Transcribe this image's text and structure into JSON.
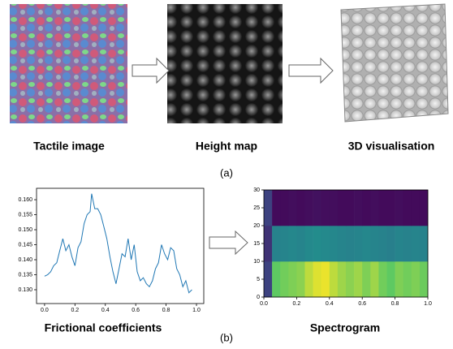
{
  "panel_a": {
    "labels": [
      "Tactile image",
      "Height map",
      "3D visualisation"
    ],
    "caption": "(a)"
  },
  "panel_b": {
    "caption": "(b)"
  },
  "chart_data": [
    {
      "type": "line",
      "caption": "Frictional coefficients",
      "color": "#1f77b4",
      "x": [
        0.0,
        0.02,
        0.04,
        0.06,
        0.08,
        0.1,
        0.12,
        0.14,
        0.16,
        0.18,
        0.2,
        0.22,
        0.24,
        0.26,
        0.28,
        0.3,
        0.31,
        0.33,
        0.35,
        0.37,
        0.39,
        0.41,
        0.43,
        0.45,
        0.47,
        0.49,
        0.51,
        0.53,
        0.55,
        0.57,
        0.59,
        0.61,
        0.63,
        0.65,
        0.67,
        0.69,
        0.71,
        0.73,
        0.75,
        0.77,
        0.79,
        0.81,
        0.83,
        0.85,
        0.87,
        0.89,
        0.91,
        0.93,
        0.95,
        0.97
      ],
      "values": [
        0.1345,
        0.135,
        0.136,
        0.138,
        0.139,
        0.143,
        0.147,
        0.143,
        0.145,
        0.141,
        0.138,
        0.144,
        0.146,
        0.152,
        0.155,
        0.156,
        0.162,
        0.157,
        0.157,
        0.155,
        0.151,
        0.147,
        0.141,
        0.136,
        0.132,
        0.137,
        0.142,
        0.141,
        0.147,
        0.14,
        0.145,
        0.136,
        0.133,
        0.134,
        0.132,
        0.131,
        0.133,
        0.137,
        0.139,
        0.145,
        0.142,
        0.14,
        0.144,
        0.143,
        0.137,
        0.135,
        0.131,
        0.133,
        0.129,
        0.13
      ],
      "xlim": [
        -0.053,
        1.048
      ],
      "xticks": [
        {
          "value": 0,
          "label": "0.0"
        },
        {
          "value": 0.2,
          "label": "0.2"
        },
        {
          "value": 0.4,
          "label": "0.4"
        },
        {
          "value": 0.6,
          "label": "0.6"
        },
        {
          "value": 0.8,
          "label": "0.8"
        },
        {
          "value": 1,
          "label": "1.0"
        }
      ],
      "ylim": [
        0.1254,
        0.1638
      ],
      "yticks": [
        {
          "value": 0.13,
          "label": "0.130"
        },
        {
          "value": 0.135,
          "label": "0.135"
        },
        {
          "value": 0.14,
          "label": "0.140"
        },
        {
          "value": 0.145,
          "label": "0.145"
        },
        {
          "value": 0.15,
          "label": "0.150"
        },
        {
          "value": 0.155,
          "label": "0.155"
        },
        {
          "value": 0.16,
          "label": "0.160"
        }
      ]
    },
    {
      "type": "heatmap",
      "caption": "Spectrogram",
      "colormap": "viridis",
      "xbins": [
        0,
        0.05,
        0.1,
        0.15,
        0.2,
        0.25,
        0.3,
        0.35,
        0.4,
        0.45,
        0.5,
        0.55,
        0.6,
        0.65,
        0.7,
        0.75,
        0.8,
        0.85,
        0.9,
        0.95,
        1.0
      ],
      "ybins": [
        0,
        10,
        20,
        30
      ],
      "values": [
        [
          0.2,
          0.75,
          0.78,
          0.8,
          0.82,
          0.9,
          0.95,
          0.97,
          0.9,
          0.85,
          0.82,
          0.85,
          0.8,
          0.85,
          0.78,
          0.75,
          0.8,
          0.78,
          0.8,
          0.77
        ],
        [
          0.15,
          0.44,
          0.45,
          0.46,
          0.45,
          0.47,
          0.48,
          0.47,
          0.46,
          0.45,
          0.44,
          0.45,
          0.46,
          0.45,
          0.44,
          0.43,
          0.45,
          0.44,
          0.45,
          0.44
        ],
        [
          0.2,
          0.03,
          0.03,
          0.04,
          0.03,
          0.04,
          0.05,
          0.04,
          0.04,
          0.03,
          0.03,
          0.04,
          0.03,
          0.04,
          0.03,
          0.03,
          0.04,
          0.03,
          0.03,
          0.03
        ]
      ],
      "xlim": [
        0,
        1
      ],
      "xticks": [
        {
          "value": 0,
          "label": "0.0"
        },
        {
          "value": 0.2,
          "label": "0.2"
        },
        {
          "value": 0.4,
          "label": "0.4"
        },
        {
          "value": 0.6,
          "label": "0.6"
        },
        {
          "value": 0.8,
          "label": "0.8"
        },
        {
          "value": 1,
          "label": "1.0"
        }
      ],
      "ylim": [
        0,
        30
      ],
      "yticks": [
        0,
        5,
        10,
        15,
        20,
        25,
        30
      ]
    }
  ]
}
